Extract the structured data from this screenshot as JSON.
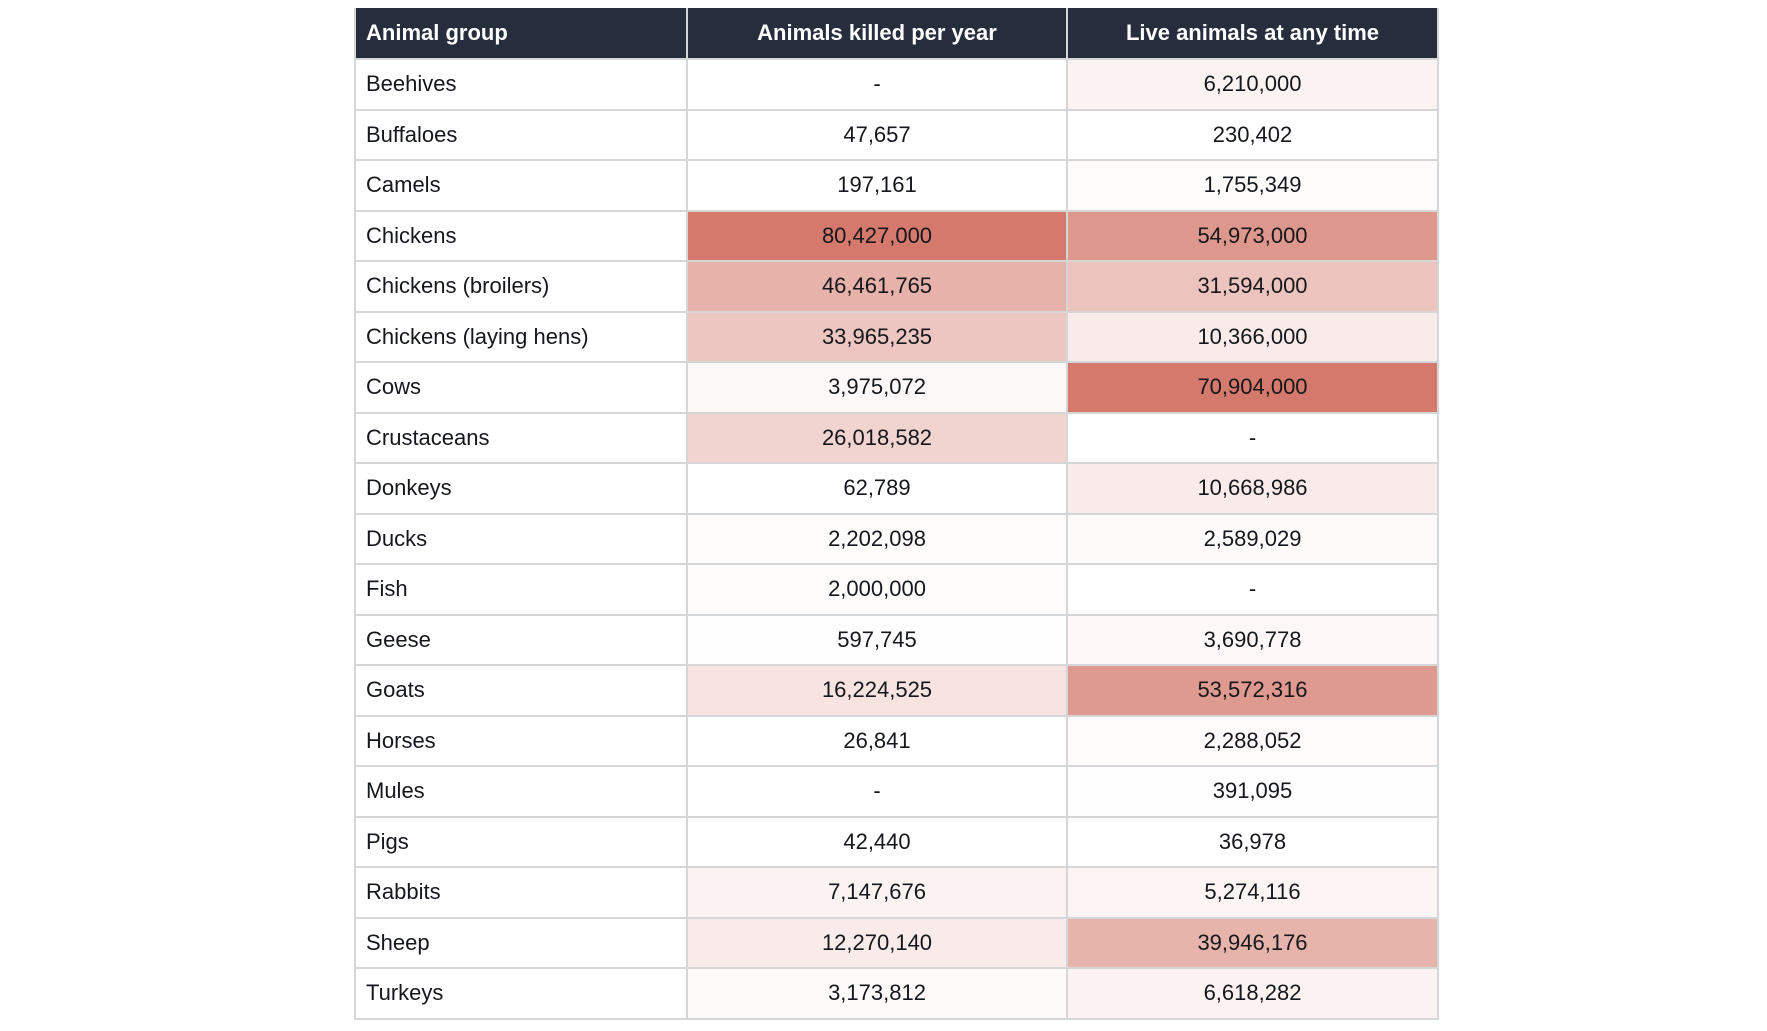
{
  "page": {
    "background": "#ffffff"
  },
  "chart_data": {
    "type": "table",
    "columns": [
      "Animal group",
      "Animals killed per year",
      "Live animals at any time"
    ],
    "rows": [
      [
        "Beehives",
        "-",
        "6,210,000"
      ],
      [
        "Buffaloes",
        "47,657",
        "230,402"
      ],
      [
        "Camels",
        "197,161",
        "1,755,349"
      ],
      [
        "Chickens",
        "80,427,000",
        "54,973,000"
      ],
      [
        "Chickens (broilers)",
        "46,461,765",
        "31,594,000"
      ],
      [
        "Chickens (laying hens)",
        "33,965,235",
        "10,366,000"
      ],
      [
        "Cows",
        "3,975,072",
        "70,904,000"
      ],
      [
        "Crustaceans",
        "26,018,582",
        "-"
      ],
      [
        "Donkeys",
        "62,789",
        "10,668,986"
      ],
      [
        "Ducks",
        "2,202,098",
        "2,589,029"
      ],
      [
        "Fish",
        "2,000,000",
        "-"
      ],
      [
        "Geese",
        "597,745",
        "3,690,778"
      ],
      [
        "Goats",
        "16,224,525",
        "53,572,316"
      ],
      [
        "Horses",
        "26,841",
        "2,288,052"
      ],
      [
        "Mules",
        "-",
        "391,095"
      ],
      [
        "Pigs",
        "42,440",
        "36,978"
      ],
      [
        "Rabbits",
        "7,147,676",
        "5,274,116"
      ],
      [
        "Sheep",
        "12,270,140",
        "39,946,176"
      ],
      [
        "Turkeys",
        "3,173,812",
        "6,618,282"
      ]
    ],
    "empty_cell": "-",
    "heatmap": {
      "normalization": "per-column",
      "min_color": "#ffffff",
      "max_color": "#d5796c"
    },
    "layout": {
      "header_bg": "#262e3d",
      "header_text_color": "#ffffff",
      "body_text_color": "#14171c",
      "border_color": "#d4d6d8",
      "grid": "on",
      "number_align": "center",
      "group_align": "left"
    }
  }
}
